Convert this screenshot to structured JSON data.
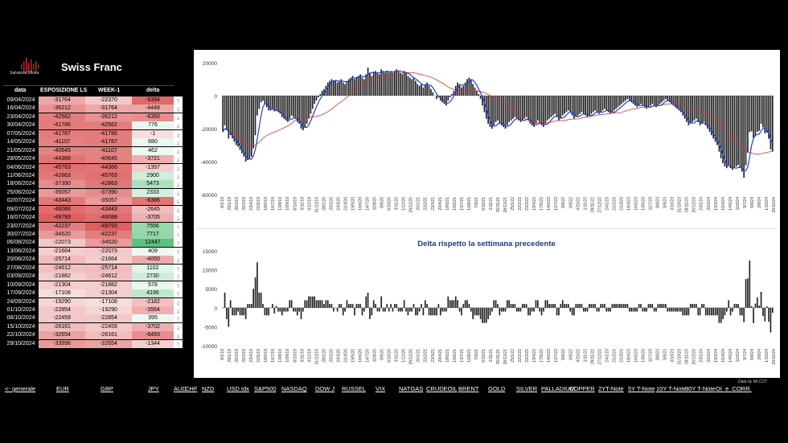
{
  "left_panel": {
    "title": "Swiss Franc",
    "logo_text": "Salvatore Bilotta",
    "headers": [
      "data",
      "ESPOSIZIONE LS",
      "WEEK-1",
      "delta"
    ],
    "rows": [
      {
        "date": "09/04/2024",
        "esp": "-31764",
        "week1": "-22370",
        "delta": "-9394",
        "dir": "up"
      },
      {
        "date": "16/04/2024",
        "esp": "-36212",
        "week1": "-31764",
        "delta": "-4448",
        "dir": "down"
      },
      {
        "date": "23/04/2024",
        "esp": "-42562",
        "week1": "-36212",
        "delta": "-6350",
        "dir": "down"
      },
      {
        "date": "30/04/2024",
        "esp": "-41786",
        "week1": "-42562",
        "delta": "776",
        "dir": "down"
      },
      {
        "date": "07/05/2024",
        "esp": "-41787",
        "week1": "-41786",
        "delta": "-1",
        "dir": "down"
      },
      {
        "date": "14/05/2024",
        "esp": "-41107",
        "week1": "-41787",
        "delta": "680",
        "dir": "down"
      },
      {
        "date": "21/05/2024",
        "esp": "-40645",
        "week1": "-41107",
        "delta": "462",
        "dir": "down"
      },
      {
        "date": "28/05/2024",
        "esp": "-44366",
        "week1": "-40645",
        "delta": "-3721",
        "dir": "down"
      },
      {
        "date": "04/06/2024",
        "esp": "-45763",
        "week1": "-44366",
        "delta": "-1397",
        "dir": "down"
      },
      {
        "date": "11/06/2024",
        "esp": "-42863",
        "week1": "-45763",
        "delta": "2900",
        "dir": "down"
      },
      {
        "date": "18/06/2024",
        "esp": "-37390",
        "week1": "-42863",
        "delta": "5473",
        "dir": "down"
      },
      {
        "date": "25/06/2024",
        "esp": "-35057",
        "week1": "-37390",
        "delta": "2333",
        "dir": "down"
      },
      {
        "date": "02/07/2024",
        "esp": "-43443",
        "week1": "-35057",
        "delta": "-8386",
        "dir": "down"
      },
      {
        "date": "09/07/2024",
        "esp": "-46088",
        "week1": "-43443",
        "delta": "-2645",
        "dir": "down"
      },
      {
        "date": "16/07/2024",
        "esp": "-49793",
        "week1": "-46088",
        "delta": "-3705",
        "dir": "down"
      },
      {
        "date": "23/07/2024",
        "esp": "-42237",
        "week1": "-49793",
        "delta": "7556",
        "dir": "up"
      },
      {
        "date": "30/07/2024",
        "esp": "-34520",
        "week1": "-42237",
        "delta": "7717",
        "dir": "up"
      },
      {
        "date": "06/08/2024",
        "esp": "-22073",
        "week1": "-34520",
        "delta": "12447",
        "dir": "up"
      },
      {
        "date": "13/08/2024",
        "esp": "-21664",
        "week1": "-22073",
        "delta": "409",
        "dir": "up"
      },
      {
        "date": "20/08/2024",
        "esp": "-25714",
        "week1": "-21664",
        "delta": "-4050",
        "dir": "down"
      },
      {
        "date": "27/08/2024",
        "esp": "-24612",
        "week1": "-25714",
        "delta": "1102",
        "dir": "up"
      },
      {
        "date": "03/09/2024",
        "esp": "-21882",
        "week1": "-24612",
        "delta": "2730",
        "dir": "up"
      },
      {
        "date": "10/09/2024",
        "esp": "-21304",
        "week1": "-21882",
        "delta": "578",
        "dir": "up"
      },
      {
        "date": "17/09/2024",
        "esp": "-17108",
        "week1": "-21304",
        "delta": "4196",
        "dir": "up"
      },
      {
        "date": "24/09/2024",
        "esp": "-19290",
        "week1": "-17108",
        "delta": "-2182",
        "dir": "down"
      },
      {
        "date": "01/10/2024",
        "esp": "-22854",
        "week1": "-19290",
        "delta": "-3564",
        "dir": "down"
      },
      {
        "date": "08/10/2024",
        "esp": "-22459",
        "week1": "-22854",
        "delta": "395",
        "dir": "up"
      },
      {
        "date": "15/10/2024",
        "esp": "-26161",
        "week1": "-22459",
        "delta": "-3702",
        "dir": "down"
      },
      {
        "date": "22/10/2024",
        "esp": "-32654",
        "week1": "-26161",
        "delta": "-6493",
        "dir": "down"
      },
      {
        "date": "29/10/2024",
        "esp": "-33998",
        "week1": "-32654",
        "delta": "-1344",
        "dir": "up"
      }
    ]
  },
  "colors": {
    "up_arrow": "#2e9c3a",
    "down_arrow": "#d9221c",
    "bar": "#222222",
    "ma_blue": "#1f3fd6",
    "ma_red": "#e03030",
    "neg_cell": "#e87b7b",
    "pos_cell": "#5cb87a"
  },
  "chart_data": [
    {
      "type": "bar",
      "title": "",
      "ylim": [
        -60000,
        20000
      ],
      "y_ticks": [
        "20000",
        "0",
        "-20000",
        "-40000",
        "-60000"
      ],
      "x_tick_labels": [
        "8/1/19",
        "29/1/19",
        "26/2/19",
        "26/3/19",
        "23/4/19",
        "21/5/19",
        "18/6/19",
        "16/7/19",
        "13/8/19",
        "10/9/19",
        "8/10/19",
        "5/11/19",
        "3/12/19",
        "31/12/19",
        "28/1/20",
        "25/2/20",
        "24/3/20",
        "21/4/20",
        "19/5/20",
        "16/6/20",
        "14/7/20",
        "11/8/20",
        "8/9/20",
        "6/10/20",
        "3/11/20",
        "1/12/20",
        "29/12/20",
        "26/1/21",
        "23/2/21",
        "23/3/21",
        "20/4/21",
        "18/5/21",
        "15/6/21",
        "13/7/21",
        "10/8/21",
        "7/9/21",
        "5/10/21",
        "2/11/21",
        "30/11/21",
        "28/12/21",
        "25/1/22",
        "22/2/22",
        "22/3/22",
        "19/4/22",
        "17/5/22",
        "14/6/22",
        "12/7/22",
        "9/8/22",
        "6/9/22",
        "4/10/22",
        "1/11/22",
        "29/11/22",
        "27/12/22",
        "24/1/23",
        "21/2/23",
        "21/3/23",
        "18/4/23",
        "16/5/23",
        "13/6/23",
        "11/7/23",
        "8/8/23",
        "5/9/23",
        "3/10/23",
        "31/10/23",
        "28/11/23",
        "26/12/23",
        "23/1/24",
        "20/2/24",
        "19/3/24",
        "16/4/24",
        "14/5/24",
        "11/6/24",
        "9/7/24",
        "6/8/24",
        "3/9/24",
        "1/10/24",
        "29/10/24"
      ],
      "weekly_values": [
        -22000,
        -18000,
        -21000,
        -26000,
        -24000,
        -26000,
        -28000,
        -30000,
        -31000,
        -33000,
        -35000,
        -37000,
        -40000,
        -39000,
        -38000,
        -37000,
        -32000,
        -24000,
        -12000,
        -8000,
        -4000,
        -3000,
        -5000,
        -7000,
        -9000,
        -9000,
        -8000,
        -9500,
        -9000,
        -10000,
        -11000,
        -13000,
        -14000,
        -15000,
        -16000,
        -14000,
        -12000,
        -13000,
        -14000,
        -16000,
        -17000,
        -20000,
        -21000,
        -19000,
        -17000,
        -14000,
        -11000,
        -8000,
        -5000,
        -3000,
        -1000,
        1000,
        3000,
        4000,
        6000,
        8000,
        9000,
        10000,
        9000,
        9000,
        8000,
        9000,
        10000,
        8000,
        7000,
        9000,
        10000,
        11000,
        12000,
        10000,
        11000,
        12000,
        13000,
        11000,
        10000,
        13000,
        17000,
        14000,
        12000,
        14000,
        15000,
        14000,
        13000,
        16000,
        15000,
        14000,
        15000,
        14000,
        15000,
        14000,
        15000,
        16000,
        15000,
        14000,
        13000,
        15000,
        14000,
        12000,
        11000,
        10000,
        11000,
        9000,
        7000,
        6000,
        7000,
        5000,
        7000,
        8000,
        6000,
        4000,
        2000,
        0,
        -2000,
        -1000,
        -3000,
        -4000,
        -5000,
        -6000,
        -3000,
        -1000,
        1000,
        3000,
        6000,
        8000,
        7000,
        5000,
        6000,
        8000,
        10000,
        11000,
        10000,
        7000,
        5000,
        3000,
        1000,
        -2000,
        -6000,
        -10000,
        -14000,
        -17000,
        -19000,
        -20000,
        -18000,
        -16000,
        -15000,
        -17000,
        -18000,
        -19000,
        -20000,
        -18000,
        -16000,
        -15000,
        -14000,
        -13000,
        -14000,
        -15000,
        -16000,
        -15000,
        -14000,
        -13000,
        -15000,
        -17000,
        -18000,
        -19000,
        -17000,
        -15000,
        -16000,
        -18000,
        -19000,
        -17000,
        -15000,
        -14000,
        -13000,
        -12000,
        -11000,
        -13000,
        -15000,
        -14000,
        -12000,
        -11000,
        -10000,
        -9000,
        -10000,
        -12000,
        -14000,
        -13000,
        -12000,
        -11000,
        -10000,
        -11000,
        -12000,
        -13000,
        -12000,
        -11000,
        -10000,
        -9000,
        -10000,
        -11000,
        -10000,
        -9000,
        -8000,
        -9000,
        -10000,
        -11000,
        -10000,
        -9000,
        -8000,
        -7000,
        -6000,
        -5000,
        -4000,
        -3000,
        -2000,
        -3000,
        -4000,
        -5000,
        -6000,
        -7000,
        -6000,
        -5000,
        -6000,
        -7000,
        -8000,
        -7000,
        -6000,
        -5000,
        -6000,
        -7000,
        -6000,
        -5000,
        -4000,
        -3000,
        -2000,
        -3000,
        -4000,
        -5000,
        -6000,
        -7000,
        -8000,
        -9000,
        -10000,
        -12000,
        -14000,
        -16000,
        -18000,
        -17000,
        -16000,
        -15000,
        -14000,
        -16000,
        -18000,
        -17000,
        -16000,
        -18000,
        -20000,
        -22000,
        -24000,
        -26000,
        -28000,
        -30000,
        -34000,
        -38000,
        -41000,
        -43000,
        -44000,
        -42000,
        -44000,
        -45000,
        -44000,
        -43000,
        -42000,
        -44000,
        -46000,
        -49793,
        -42237,
        -34520,
        -22073,
        -21664,
        -25714,
        -24612,
        -21882,
        -21304,
        -17108,
        -19290,
        -22854,
        -22459,
        -26161,
        -32654,
        -33998
      ]
    },
    {
      "type": "bar",
      "title": "Delta rispetto la settimana precedente",
      "ylim": [
        -10000,
        15000
      ],
      "y_ticks": [
        "15000",
        "10000",
        "5000",
        "0",
        "-5000",
        "-10000"
      ],
      "x_tick_labels": [
        "8/1/19",
        "29/1/19",
        "26/2/19",
        "26/3/19",
        "23/4/19",
        "21/5/19",
        "18/6/19",
        "16/7/19",
        "13/8/19",
        "10/9/19",
        "8/10/19",
        "5/11/19",
        "3/12/19",
        "31/12/19",
        "28/1/20",
        "25/2/20",
        "24/3/20",
        "21/4/20",
        "19/5/20",
        "16/6/20",
        "14/7/20",
        "11/8/20",
        "8/9/20",
        "6/10/20",
        "3/11/20",
        "1/12/20",
        "29/12/20",
        "26/1/21",
        "23/2/21",
        "23/3/21",
        "20/4/21",
        "18/5/21",
        "15/6/21",
        "13/7/21",
        "10/8/21",
        "7/9/21",
        "5/10/21",
        "2/11/21",
        "30/11/21",
        "28/12/21",
        "25/1/22",
        "22/2/22",
        "22/3/22",
        "19/4/22",
        "17/5/22",
        "14/6/22",
        "12/7/22",
        "9/8/22",
        "6/9/22",
        "4/10/22",
        "1/11/22",
        "29/11/22",
        "27/12/22",
        "24/1/23",
        "21/2/23",
        "21/3/23",
        "18/4/23",
        "16/5/23",
        "13/6/23",
        "11/7/23",
        "8/8/23",
        "5/9/23",
        "3/10/23",
        "31/10/23",
        "28/11/23",
        "26/12/23",
        "23/1/24",
        "20/2/24",
        "19/3/24",
        "16/4/24",
        "14/5/24",
        "11/6/24",
        "9/7/24",
        "6/8/24",
        "3/9/24",
        "1/10/24",
        "29/10/24"
      ]
    }
  ],
  "credit": "Data by Mr.COT",
  "nav": [
    "<- generale",
    "EUR",
    "GBP",
    "JPY",
    "AUD",
    "CHF",
    "NZD",
    "USD Idx",
    "S&P500",
    "NASDAQ",
    "DOW J",
    "RUSSEL",
    "VIX",
    "NATGAS",
    "CRUDEOIL",
    "BRENT",
    "GOLD",
    "SILVER",
    "PALLADIUM",
    "COPPER",
    "2YT-Note",
    "5Y T-Note",
    "10Y T-Note",
    "30Y T-Note",
    "OI_e_CORR."
  ]
}
